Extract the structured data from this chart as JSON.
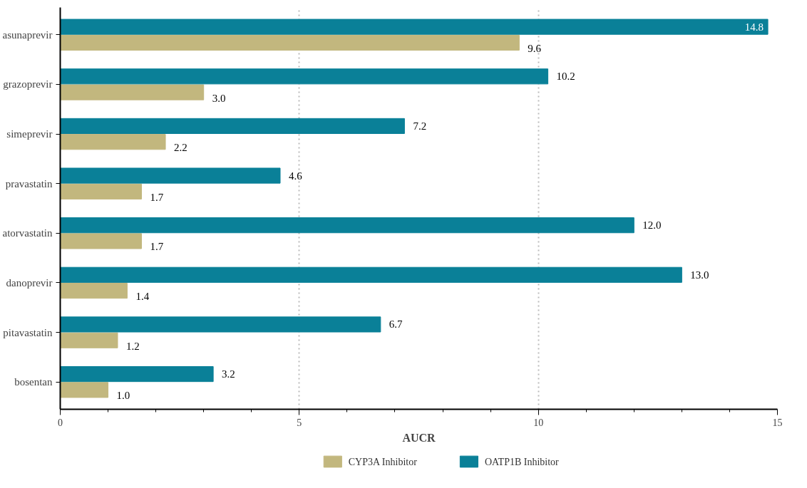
{
  "chart_data": {
    "type": "bar",
    "orientation": "horizontal",
    "xlabel": "AUCR",
    "categories": [
      "asunaprevir",
      "grazoprevir",
      "simeprevir",
      "pravastatin",
      "atorvastatin",
      "danoprevir",
      "pitavastatin",
      "bosentan"
    ],
    "series": [
      {
        "name": "CYP3A Inhibitor",
        "color": "#c2b77e",
        "values": [
          9.6,
          3.0,
          2.2,
          1.7,
          1.7,
          1.4,
          1.2,
          1.0
        ],
        "value_labels": [
          "9.6",
          "3.0",
          "2.2",
          "1.7",
          "1.7",
          "1.4",
          "1.2",
          "1.0"
        ]
      },
      {
        "name": "OATP1B Inhibitor",
        "color": "#0a8098",
        "values": [
          14.8,
          10.2,
          7.2,
          4.6,
          12.0,
          13.0,
          6.7,
          3.2
        ],
        "value_labels": [
          "14.8",
          "10.2",
          "7.2",
          "4.6",
          "12.0",
          "13.0",
          "6.7",
          "3.2"
        ]
      }
    ],
    "xlim": [
      0,
      15
    ],
    "xticks": [
      0,
      {
        "value": 1,
        "label": null
      },
      {
        "value": 2,
        "label": null
      },
      {
        "value": 3,
        "label": null
      },
      {
        "value": 4,
        "label": null
      },
      5,
      {
        "value": 6,
        "label": null
      },
      {
        "value": 7,
        "label": null
      },
      {
        "value": 8,
        "label": null
      },
      {
        "value": 9,
        "label": null
      },
      10,
      {
        "value": 11,
        "label": null
      },
      {
        "value": 12,
        "label": null
      },
      {
        "value": 13,
        "label": null
      },
      {
        "value": 14,
        "label": null
      },
      15
    ],
    "grid": "x",
    "legend": "bottom"
  }
}
